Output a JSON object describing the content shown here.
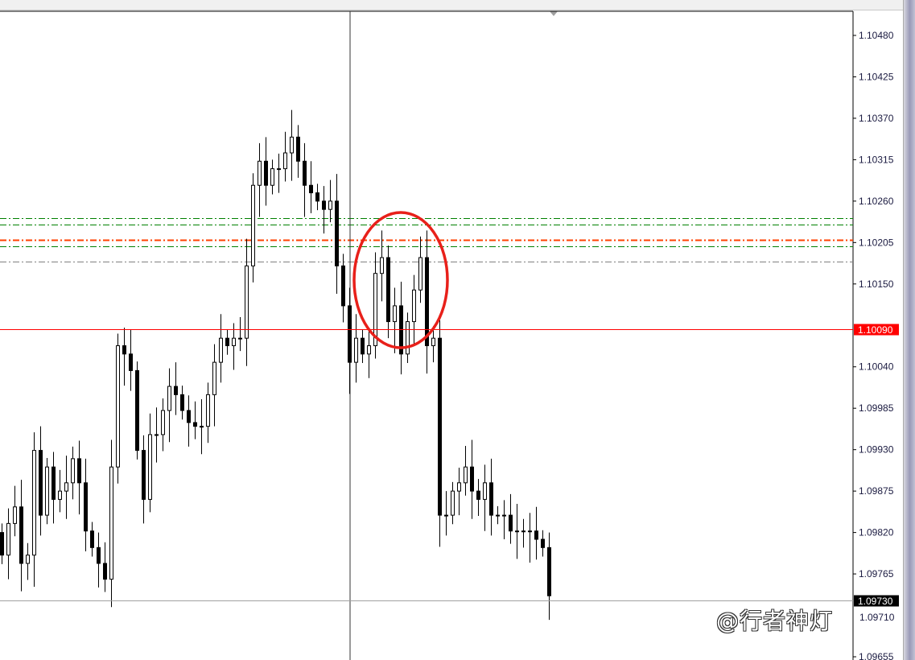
{
  "chart_data": {
    "type": "candlestick",
    "title": "",
    "y_axis": {
      "position": "right",
      "range": [
        1.09655,
        1.1048
      ],
      "tick_labels": [
        "1.10480",
        "1.10425",
        "1.10370",
        "1.10315",
        "1.10260",
        "1.10205",
        "1.10150",
        "1.10040",
        "1.09985",
        "1.09930",
        "1.09875",
        "1.09820",
        "1.09765",
        "1.09655"
      ]
    },
    "grid": false,
    "close": [
      1.0979,
      1.09832,
      1.09854,
      1.09779,
      1.0979,
      1.09929,
      1.09843,
      1.09907,
      1.09864,
      1.09875,
      1.09886,
      1.09918,
      1.09886,
      1.09822,
      1.098,
      1.09779,
      1.09758,
      1.09907,
      1.10068,
      1.10057,
      1.10035,
      1.09929,
      1.09864,
      1.0995,
      1.0995,
      1.09982,
      1.10014,
      1.10003,
      1.09982,
      1.09966,
      1.09961,
      1.09961,
      1.10003,
      1.10046,
      1.10078,
      1.10068,
      1.10078,
      1.10078,
      1.10174,
      1.10281,
      1.10313,
      1.10281,
      1.10303,
      1.10303,
      1.10324,
      1.10345,
      1.10313,
      1.10281,
      1.10271,
      1.1026,
      1.10249,
      1.1026,
      1.10174,
      1.10121,
      1.10046,
      1.10078,
      1.10057,
      1.10068,
      1.10164,
      1.10185,
      1.101,
      1.10121,
      1.10057,
      1.101,
      1.10142,
      1.10185,
      1.10068,
      1.10078,
      1.09843,
      1.09843,
      1.09875,
      1.09886,
      1.09907,
      1.09875,
      1.09864,
      1.09886,
      1.09843,
      1.09843,
      1.09843,
      1.09822,
      1.09822,
      1.09822,
      1.09822,
      1.09811,
      1.098,
      1.09736
    ],
    "price_lines": [
      {
        "price": 1.1009,
        "label": "1.10090",
        "style": "solid",
        "color": "#ff0000"
      },
      {
        "price": 1.0973,
        "label": "1.09730",
        "style": "solid",
        "color": "#a0a0a0"
      }
    ],
    "levels": [
      {
        "price": 1.10237,
        "style": "dash-dot",
        "color": "#008000"
      },
      {
        "price": 1.10229,
        "style": "dash-dot",
        "color": "#008000"
      },
      {
        "price": 1.10209,
        "style": "dash-dot",
        "color": "#ff4000"
      },
      {
        "price": 1.102,
        "style": "dash-dot",
        "color": "#008000"
      },
      {
        "price": 1.1018,
        "style": "dash-dot",
        "color": "#808080"
      }
    ],
    "annotation": {
      "shape": "ellipse",
      "color": "#e8201a"
    },
    "crosshair_vertical": true
  },
  "overlap_label": "1.09710",
  "watermark": "@行者神灯"
}
